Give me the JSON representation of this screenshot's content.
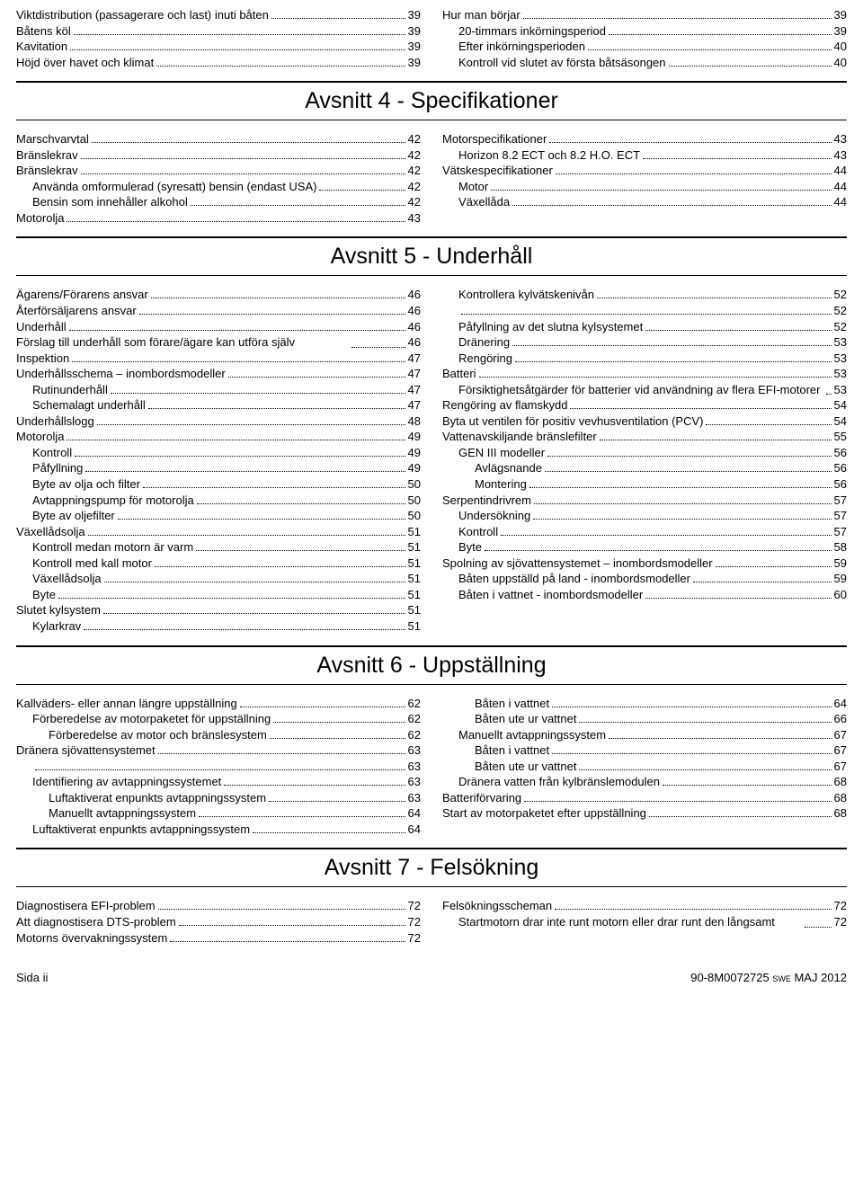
{
  "top": {
    "left": [
      {
        "label": "Viktdistribution (passagerare och last) inuti båten",
        "page": "39",
        "indent": 0
      },
      {
        "label": "Båtens köl",
        "page": "39",
        "indent": 0
      },
      {
        "label": "Kavitation",
        "page": "39",
        "indent": 0
      },
      {
        "label": "Höjd över havet och klimat",
        "page": "39",
        "indent": 0
      }
    ],
    "right": [
      {
        "label": "Hur man börjar",
        "page": "39",
        "indent": 0
      },
      {
        "label": "20-timmars inkörningsperiod",
        "page": "39",
        "indent": 1
      },
      {
        "label": "Efter inkörningsperioden",
        "page": "40",
        "indent": 1
      },
      {
        "label": "Kontroll vid slutet av första båtsäsongen",
        "page": "40",
        "indent": 1
      }
    ]
  },
  "s4": {
    "title": "Avsnitt 4 - Specifikationer",
    "left": [
      {
        "label": "Marschvarvtal",
        "page": "42",
        "indent": 0
      },
      {
        "label": "Bränslekrav",
        "page": "42",
        "indent": 0
      },
      {
        "label": "Bränslekrav",
        "page": "42",
        "indent": 0
      },
      {
        "label": "Använda omformulerad (syresatt) bensin (endast USA)",
        "page": "42",
        "indent": 1
      },
      {
        "label": "Bensin som innehåller alkohol",
        "page": "42",
        "indent": 1
      },
      {
        "label": "Motorolja",
        "page": "43",
        "indent": 0
      }
    ],
    "right": [
      {
        "label": "Motorspecifikationer",
        "page": "43",
        "indent": 0
      },
      {
        "label": "Horizon 8.2 ECT och 8.2 H.O. ECT",
        "page": "43",
        "indent": 1
      },
      {
        "label": "Vätskespecifikationer",
        "page": "44",
        "indent": 0
      },
      {
        "label": "Motor",
        "page": "44",
        "indent": 1
      },
      {
        "label": "Växellåda",
        "page": "44",
        "indent": 1
      }
    ]
  },
  "s5": {
    "title": "Avsnitt 5 - Underhåll",
    "left": [
      {
        "label": "Ägarens/Förarens ansvar",
        "page": "46",
        "indent": 0
      },
      {
        "label": "Återförsäljarens ansvar",
        "page": "46",
        "indent": 0
      },
      {
        "label": "Underhåll",
        "page": "46",
        "indent": 0
      },
      {
        "label": "Förslag till underhåll som förare/ägare kan utföra själv",
        "page": "46",
        "indent": 0
      },
      {
        "label": "Inspektion",
        "page": "47",
        "indent": 0
      },
      {
        "label": "Underhållsschema – inombordsmodeller",
        "page": "47",
        "indent": 0
      },
      {
        "label": "Rutinunderhåll",
        "page": "47",
        "indent": 1
      },
      {
        "label": "Schemalagt underhåll",
        "page": "47",
        "indent": 1
      },
      {
        "label": "Underhållslogg",
        "page": "48",
        "indent": 0
      },
      {
        "label": "Motorolja",
        "page": "49",
        "indent": 0
      },
      {
        "label": "Kontroll",
        "page": "49",
        "indent": 1
      },
      {
        "label": "Påfyllning",
        "page": "49",
        "indent": 1
      },
      {
        "label": "Byte av olja och filter",
        "page": "50",
        "indent": 1
      },
      {
        "label": "Avtappningspump för motorolja",
        "page": "50",
        "indent": 1
      },
      {
        "label": "Byte av oljefilter",
        "page": "50",
        "indent": 1
      },
      {
        "label": "Växellådsolja",
        "page": "51",
        "indent": 0
      },
      {
        "label": "Kontroll medan motorn är varm",
        "page": "51",
        "indent": 1
      },
      {
        "label": "Kontroll med kall motor",
        "page": "51",
        "indent": 1
      },
      {
        "label": "Växellådsolja",
        "page": "51",
        "indent": 1
      },
      {
        "label": "Byte",
        "page": "51",
        "indent": 1
      },
      {
        "label": "Slutet kylsystem",
        "page": "51",
        "indent": 0
      },
      {
        "label": "Kylarkrav",
        "page": "51",
        "indent": 1
      }
    ],
    "right": [
      {
        "label": "Kontrollera kylvätskenivån",
        "page": "52",
        "indent": 1
      },
      {
        "label": "",
        "page": "52",
        "indent": 1
      },
      {
        "label": "Påfyllning av det slutna kylsystemet",
        "page": "52",
        "indent": 1
      },
      {
        "label": "Dränering",
        "page": "53",
        "indent": 1
      },
      {
        "label": "Rengöring",
        "page": "53",
        "indent": 1
      },
      {
        "label": "Batteri",
        "page": "53",
        "indent": 0
      },
      {
        "label": "Försiktighetsåtgärder för batterier vid användning av flera EFI-motorer",
        "page": "53",
        "indent": 1
      },
      {
        "label": "Rengöring av flamskydd",
        "page": "54",
        "indent": 0
      },
      {
        "label": "Byta ut ventilen för positiv vevhusventilation (PCV)",
        "page": "54",
        "indent": 0
      },
      {
        "label": "Vattenavskiljande bränslefilter",
        "page": "55",
        "indent": 0
      },
      {
        "label": "GEN III modeller",
        "page": "56",
        "indent": 1
      },
      {
        "label": "Avlägsnande",
        "page": "56",
        "indent": 2
      },
      {
        "label": "Montering",
        "page": "56",
        "indent": 2
      },
      {
        "label": "Serpentindrivrem",
        "page": "57",
        "indent": 0
      },
      {
        "label": "Undersökning",
        "page": "57",
        "indent": 1
      },
      {
        "label": "Kontroll",
        "page": "57",
        "indent": 1
      },
      {
        "label": "Byte",
        "page": "58",
        "indent": 1
      },
      {
        "label": "Spolning av sjövattensystemet – inombordsmodeller",
        "page": "59",
        "indent": 0
      },
      {
        "label": "Båten uppställd på land - inombordsmodeller",
        "page": "59",
        "indent": 1
      },
      {
        "label": "Båten i vattnet - inombordsmodeller",
        "page": "60",
        "indent": 1
      }
    ]
  },
  "s6": {
    "title": "Avsnitt 6 - Uppställning",
    "left": [
      {
        "label": "Kallväders- eller annan längre uppställning",
        "page": "62",
        "indent": 0
      },
      {
        "label": "Förberedelse av motorpaketet för uppställning",
        "page": "62",
        "indent": 1
      },
      {
        "label": "Förberedelse av motor och bränslesystem",
        "page": "62",
        "indent": 2
      },
      {
        "label": "Dränera sjövattensystemet",
        "page": "63",
        "indent": 0
      },
      {
        "label": "",
        "page": "63",
        "indent": 1
      },
      {
        "label": "Identifiering av avtappningssystemet",
        "page": "63",
        "indent": 1
      },
      {
        "label": "Luftaktiverat enpunkts avtappningssystem",
        "page": "63",
        "indent": 2
      },
      {
        "label": "Manuellt avtappningssystem",
        "page": "64",
        "indent": 2
      },
      {
        "label": "Luftaktiverat enpunkts avtappningssystem",
        "page": "64",
        "indent": 1
      }
    ],
    "right": [
      {
        "label": "Båten i vattnet",
        "page": "64",
        "indent": 2
      },
      {
        "label": "Båten ute ur vattnet",
        "page": "66",
        "indent": 2
      },
      {
        "label": "Manuellt avtappningssystem",
        "page": "67",
        "indent": 1
      },
      {
        "label": "Båten i vattnet",
        "page": "67",
        "indent": 2
      },
      {
        "label": "Båten ute ur vattnet",
        "page": "67",
        "indent": 2
      },
      {
        "label": "Dränera vatten från kylbränslemodulen",
        "page": "68",
        "indent": 1
      },
      {
        "label": "Batteriförvaring",
        "page": "68",
        "indent": 0
      },
      {
        "label": "Start av motorpaketet efter uppställning",
        "page": "68",
        "indent": 0
      }
    ]
  },
  "s7": {
    "title": "Avsnitt 7 - Felsökning",
    "left": [
      {
        "label": "Diagnostisera EFI-problem",
        "page": "72",
        "indent": 0
      },
      {
        "label": "Att diagnostisera DTS-problem",
        "page": "72",
        "indent": 0
      },
      {
        "label": "Motorns övervakningssystem",
        "page": "72",
        "indent": 0
      }
    ],
    "right": [
      {
        "label": "Felsökningsscheman",
        "page": "72",
        "indent": 0
      },
      {
        "label": "Startmotorn drar inte runt motorn eller drar runt den långsamt",
        "page": "72",
        "indent": 1
      }
    ]
  },
  "footer": {
    "left_a": "Sida",
    "left_b": "  ii",
    "right_a": "90-8M0072725 ",
    "right_b": " swe ",
    "right_c": " MAJ  2012"
  }
}
